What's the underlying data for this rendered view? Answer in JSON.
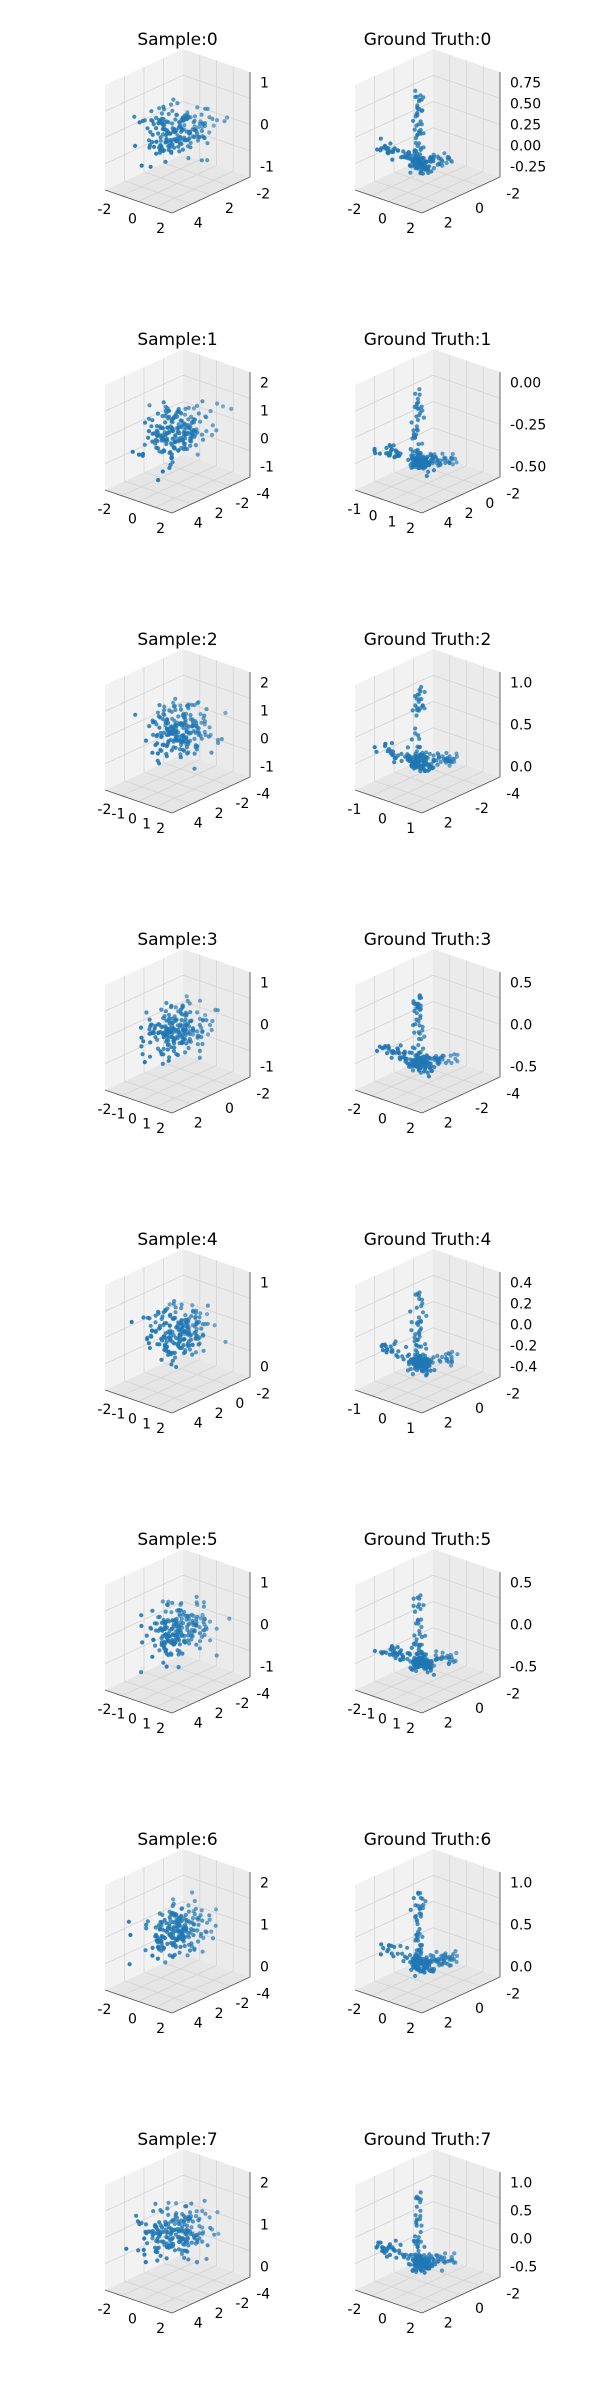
{
  "figure": {
    "point_color": "#1f77b4",
    "pane_colors": [
      "#f2f2f2",
      "#e6e6e6",
      "#ebebeb"
    ],
    "grid_color": "#d4d4d4"
  },
  "chart_data": [
    {
      "type": "scatter",
      "subtype": "3d",
      "title": "Sample:0",
      "x_ticks": [
        "-2",
        "0",
        "2"
      ],
      "y_ticks": [
        "-2",
        "2",
        "4"
      ],
      "z_ticks": [
        "1",
        "0",
        "-1"
      ],
      "n_points": 200,
      "spread": [
        1.0,
        1.0,
        0.55
      ],
      "seed": 11
    },
    {
      "type": "scatter",
      "subtype": "3d",
      "title": "Ground Truth:0",
      "x_ticks": [
        "-2",
        "0",
        "2"
      ],
      "y_ticks": [
        "-2",
        "0",
        "2"
      ],
      "z_ticks": [
        "0.75",
        "0.50",
        "0.25",
        "0.00",
        "-0.25"
      ],
      "n_points": 200,
      "skeleton": true,
      "seed": 12
    },
    {
      "type": "scatter",
      "subtype": "3d",
      "title": "Sample:1",
      "x_ticks": [
        "-2",
        "0",
        "2"
      ],
      "y_ticks": [
        "-4",
        "-2",
        "2",
        "4"
      ],
      "z_ticks": [
        "2",
        "1",
        "0",
        "-1"
      ],
      "n_points": 200,
      "spread": [
        1.0,
        1.0,
        0.55
      ],
      "seed": 21
    },
    {
      "type": "scatter",
      "subtype": "3d",
      "title": "Ground Truth:1",
      "x_ticks": [
        "-1",
        "0",
        "1",
        "2"
      ],
      "y_ticks": [
        "-2",
        "0",
        "2",
        "4"
      ],
      "z_ticks": [
        "0.00",
        "-0.25",
        "-0.50"
      ],
      "n_points": 200,
      "skeleton": true,
      "seed": 22
    },
    {
      "type": "scatter",
      "subtype": "3d",
      "title": "Sample:2",
      "x_ticks": [
        "-2",
        "-1",
        "0",
        "1",
        "2"
      ],
      "y_ticks": [
        "-4",
        "-2",
        "2",
        "4"
      ],
      "z_ticks": [
        "2",
        "1",
        "0",
        "-1"
      ],
      "n_points": 200,
      "spread": [
        1.0,
        1.0,
        0.55
      ],
      "seed": 31
    },
    {
      "type": "scatter",
      "subtype": "3d",
      "title": "Ground Truth:2",
      "x_ticks": [
        "-1",
        "0",
        "1"
      ],
      "y_ticks": [
        "-4",
        "-2",
        "2"
      ],
      "z_ticks": [
        "1.0",
        "0.5",
        "0.0"
      ],
      "n_points": 200,
      "skeleton": true,
      "seed": 32
    },
    {
      "type": "scatter",
      "subtype": "3d",
      "title": "Sample:3",
      "x_ticks": [
        "-2",
        "-1",
        "0",
        "1",
        "2"
      ],
      "y_ticks": [
        "-2",
        "0",
        "2"
      ],
      "z_ticks": [
        "1",
        "0",
        "-1"
      ],
      "n_points": 200,
      "spread": [
        1.0,
        1.0,
        0.55
      ],
      "seed": 41
    },
    {
      "type": "scatter",
      "subtype": "3d",
      "title": "Ground Truth:3",
      "x_ticks": [
        "-2",
        "0",
        "2"
      ],
      "y_ticks": [
        "-4",
        "-2",
        "2"
      ],
      "z_ticks": [
        "0.5",
        "0.0",
        "-0.5"
      ],
      "n_points": 200,
      "skeleton": true,
      "seed": 42
    },
    {
      "type": "scatter",
      "subtype": "3d",
      "title": "Sample:4",
      "x_ticks": [
        "-2",
        "-1",
        "0",
        "1",
        "2"
      ],
      "y_ticks": [
        "-2",
        "0",
        "2",
        "4"
      ],
      "z_ticks": [
        "1",
        "0"
      ],
      "n_points": 200,
      "spread": [
        1.0,
        1.0,
        0.55
      ],
      "seed": 51
    },
    {
      "type": "scatter",
      "subtype": "3d",
      "title": "Ground Truth:4",
      "x_ticks": [
        "-1",
        "0",
        "1"
      ],
      "y_ticks": [
        "-2",
        "0",
        "2"
      ],
      "z_ticks": [
        "0.4",
        "0.2",
        "0.0",
        "-0.2",
        "-0.4"
      ],
      "n_points": 200,
      "skeleton": true,
      "seed": 52
    },
    {
      "type": "scatter",
      "subtype": "3d",
      "title": "Sample:5",
      "x_ticks": [
        "-2",
        "-1",
        "0",
        "1",
        "2"
      ],
      "y_ticks": [
        "-4",
        "-2",
        "2",
        "4"
      ],
      "z_ticks": [
        "1",
        "0",
        "-1"
      ],
      "n_points": 200,
      "spread": [
        1.0,
        1.0,
        0.55
      ],
      "seed": 61
    },
    {
      "type": "scatter",
      "subtype": "3d",
      "title": "Ground Truth:5",
      "x_ticks": [
        "-2",
        "-1",
        "0",
        "1",
        "2"
      ],
      "y_ticks": [
        "-2",
        "0",
        "2"
      ],
      "z_ticks": [
        "0.5",
        "0.0",
        "-0.5"
      ],
      "n_points": 200,
      "skeleton": true,
      "seed": 62
    },
    {
      "type": "scatter",
      "subtype": "3d",
      "title": "Sample:6",
      "x_ticks": [
        "-2",
        "0",
        "2"
      ],
      "y_ticks": [
        "-4",
        "-2",
        "2",
        "4"
      ],
      "z_ticks": [
        "2",
        "1",
        "0"
      ],
      "n_points": 200,
      "spread": [
        1.0,
        1.0,
        0.55
      ],
      "seed": 71
    },
    {
      "type": "scatter",
      "subtype": "3d",
      "title": "Ground Truth:6",
      "x_ticks": [
        "-2",
        "0",
        "2"
      ],
      "y_ticks": [
        "-2",
        "0",
        "2"
      ],
      "z_ticks": [
        "1.0",
        "0.5",
        "0.0"
      ],
      "n_points": 200,
      "skeleton": true,
      "seed": 72
    },
    {
      "type": "scatter",
      "subtype": "3d",
      "title": "Sample:7",
      "x_ticks": [
        "-2",
        "0",
        "2"
      ],
      "y_ticks": [
        "-4",
        "-2",
        "2",
        "4"
      ],
      "z_ticks": [
        "2",
        "1",
        "0"
      ],
      "n_points": 200,
      "spread": [
        1.0,
        1.0,
        0.55
      ],
      "seed": 81
    },
    {
      "type": "scatter",
      "subtype": "3d",
      "title": "Ground Truth:7",
      "x_ticks": [
        "-2",
        "0",
        "2"
      ],
      "y_ticks": [
        "-2",
        "0",
        "2"
      ],
      "z_ticks": [
        "1.0",
        "0.5",
        "0.0",
        "-0.5"
      ],
      "n_points": 200,
      "skeleton": true,
      "seed": 82
    }
  ]
}
